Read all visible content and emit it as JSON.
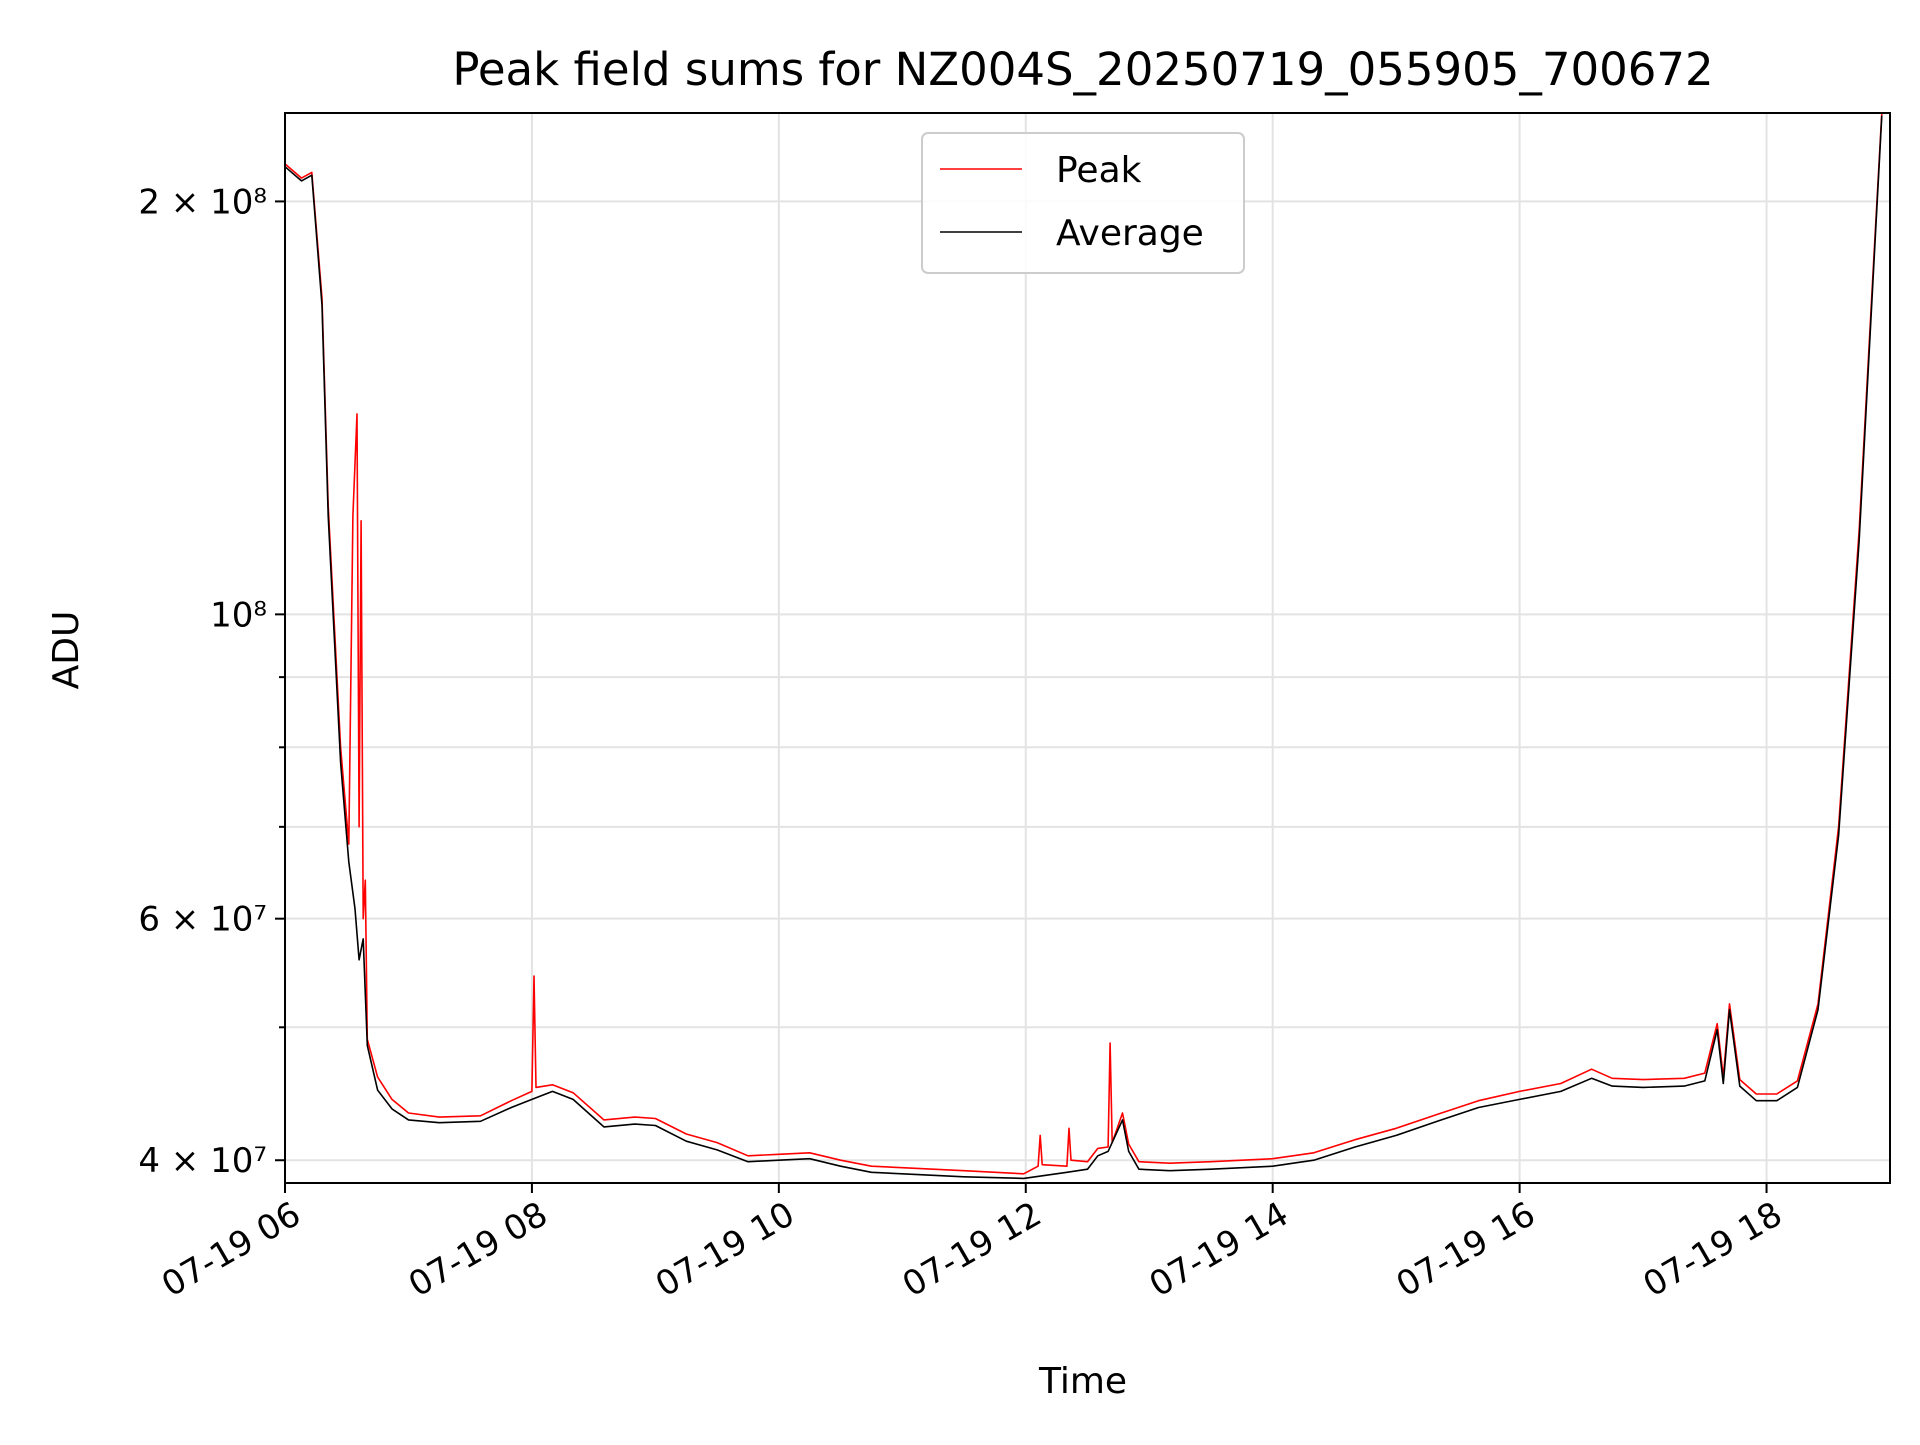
{
  "chart_data": {
    "type": "line",
    "title": "Peak field sums for NZ004S_20250719_055905_700672",
    "xlabel": "Time",
    "ylabel": "ADU",
    "y_scale": "log",
    "grid": true,
    "legend_position": "top-center",
    "xlim": [
      "2025-07-19T06:00",
      "2025-07-19T19:00"
    ],
    "ylim": [
      38500000,
      232000000
    ],
    "x_ticks": [
      {
        "value": "2025-07-19T06:00",
        "label": "07-19 06"
      },
      {
        "value": "2025-07-19T08:00",
        "label": "07-19 08"
      },
      {
        "value": "2025-07-19T10:00",
        "label": "07-19 10"
      },
      {
        "value": "2025-07-19T12:00",
        "label": "07-19 12"
      },
      {
        "value": "2025-07-19T14:00",
        "label": "07-19 14"
      },
      {
        "value": "2025-07-19T16:00",
        "label": "07-19 16"
      },
      {
        "value": "2025-07-19T18:00",
        "label": "07-19 18"
      }
    ],
    "y_ticks_major": [
      {
        "value": 40000000,
        "label": "4 × 10⁷"
      },
      {
        "value": 60000000,
        "label": "6 × 10⁷"
      },
      {
        "value": 100000000,
        "label": "10⁸"
      },
      {
        "value": 200000000,
        "label": "2 × 10⁸"
      }
    ],
    "y_ticks_minor": [
      50000000,
      70000000,
      80000000,
      90000000
    ],
    "series": [
      {
        "name": "Peak",
        "color": "#ff0000",
        "points": [
          [
            "2025-07-19T06:00",
            213000000
          ],
          [
            "2025-07-19T06:08",
            208000000
          ],
          [
            "2025-07-19T06:13",
            210000000
          ],
          [
            "2025-07-19T06:18",
            170000000
          ],
          [
            "2025-07-19T06:21",
            120000000
          ],
          [
            "2025-07-19T06:27",
            80000000
          ],
          [
            "2025-07-19T06:31",
            68000000
          ],
          [
            "2025-07-19T06:33",
            118000000
          ],
          [
            "2025-07-19T06:35",
            140000000
          ],
          [
            "2025-07-19T06:36",
            70000000
          ],
          [
            "2025-07-19T06:37",
            117000000
          ],
          [
            "2025-07-19T06:38",
            60000000
          ],
          [
            "2025-07-19T06:39",
            64000000
          ],
          [
            "2025-07-19T06:40",
            49000000
          ],
          [
            "2025-07-19T06:45",
            46000000
          ],
          [
            "2025-07-19T06:52",
            44300000
          ],
          [
            "2025-07-19T07:00",
            43300000
          ],
          [
            "2025-07-19T07:15",
            43000000
          ],
          [
            "2025-07-19T07:35",
            43100000
          ],
          [
            "2025-07-19T07:50",
            44200000
          ],
          [
            "2025-07-19T08:00",
            44900000
          ],
          [
            "2025-07-19T08:01",
            54500000
          ],
          [
            "2025-07-19T08:02",
            45200000
          ],
          [
            "2025-07-19T08:10",
            45400000
          ],
          [
            "2025-07-19T08:20",
            44800000
          ],
          [
            "2025-07-19T08:35",
            42800000
          ],
          [
            "2025-07-19T08:50",
            43000000
          ],
          [
            "2025-07-19T09:00",
            42900000
          ],
          [
            "2025-07-19T09:15",
            41800000
          ],
          [
            "2025-07-19T09:30",
            41200000
          ],
          [
            "2025-07-19T09:45",
            40300000
          ],
          [
            "2025-07-19T10:00",
            40400000
          ],
          [
            "2025-07-19T10:15",
            40500000
          ],
          [
            "2025-07-19T10:30",
            40000000
          ],
          [
            "2025-07-19T10:45",
            39600000
          ],
          [
            "2025-07-19T11:00",
            39500000
          ],
          [
            "2025-07-19T11:30",
            39300000
          ],
          [
            "2025-07-19T11:59",
            39100000
          ],
          [
            "2025-07-19T12:06",
            39600000
          ],
          [
            "2025-07-19T12:07",
            41700000
          ],
          [
            "2025-07-19T12:08",
            39700000
          ],
          [
            "2025-07-19T12:20",
            39600000
          ],
          [
            "2025-07-19T12:21",
            42200000
          ],
          [
            "2025-07-19T12:22",
            40000000
          ],
          [
            "2025-07-19T12:30",
            39900000
          ],
          [
            "2025-07-19T12:35",
            40800000
          ],
          [
            "2025-07-19T12:40",
            40900000
          ],
          [
            "2025-07-19T12:41",
            48700000
          ],
          [
            "2025-07-19T12:42",
            41200000
          ],
          [
            "2025-07-19T12:47",
            43300000
          ],
          [
            "2025-07-19T12:50",
            41100000
          ],
          [
            "2025-07-19T12:55",
            39900000
          ],
          [
            "2025-07-19T13:10",
            39800000
          ],
          [
            "2025-07-19T13:30",
            39900000
          ],
          [
            "2025-07-19T14:00",
            40100000
          ],
          [
            "2025-07-19T14:20",
            40500000
          ],
          [
            "2025-07-19T14:40",
            41400000
          ],
          [
            "2025-07-19T15:00",
            42200000
          ],
          [
            "2025-07-19T15:20",
            43200000
          ],
          [
            "2025-07-19T15:40",
            44200000
          ],
          [
            "2025-07-19T16:00",
            44900000
          ],
          [
            "2025-07-19T16:20",
            45500000
          ],
          [
            "2025-07-19T16:35",
            46600000
          ],
          [
            "2025-07-19T16:45",
            45900000
          ],
          [
            "2025-07-19T17:00",
            45800000
          ],
          [
            "2025-07-19T17:20",
            45900000
          ],
          [
            "2025-07-19T17:30",
            46300000
          ],
          [
            "2025-07-19T17:36",
            50300000
          ],
          [
            "2025-07-19T17:39",
            46000000
          ],
          [
            "2025-07-19T17:42",
            52000000
          ],
          [
            "2025-07-19T17:47",
            45800000
          ],
          [
            "2025-07-19T17:55",
            44700000
          ],
          [
            "2025-07-19T18:05",
            44700000
          ],
          [
            "2025-07-19T18:15",
            45700000
          ],
          [
            "2025-07-19T18:25",
            52000000
          ],
          [
            "2025-07-19T18:35",
            70000000
          ],
          [
            "2025-07-19T18:45",
            115000000
          ],
          [
            "2025-07-19T18:52",
            180000000
          ],
          [
            "2025-07-19T18:56",
            232000000
          ]
        ]
      },
      {
        "name": "Average",
        "color": "#000000",
        "points": [
          [
            "2025-07-19T06:00",
            212000000
          ],
          [
            "2025-07-19T06:08",
            207000000
          ],
          [
            "2025-07-19T06:13",
            209000000
          ],
          [
            "2025-07-19T06:18",
            168000000
          ],
          [
            "2025-07-19T06:21",
            118000000
          ],
          [
            "2025-07-19T06:27",
            78000000
          ],
          [
            "2025-07-19T06:31",
            66000000
          ],
          [
            "2025-07-19T06:34",
            61000000
          ],
          [
            "2025-07-19T06:36",
            56000000
          ],
          [
            "2025-07-19T06:38",
            58000000
          ],
          [
            "2025-07-19T06:40",
            48500000
          ],
          [
            "2025-07-19T06:45",
            45000000
          ],
          [
            "2025-07-19T06:52",
            43600000
          ],
          [
            "2025-07-19T07:00",
            42800000
          ],
          [
            "2025-07-19T07:15",
            42600000
          ],
          [
            "2025-07-19T07:35",
            42700000
          ],
          [
            "2025-07-19T07:50",
            43700000
          ],
          [
            "2025-07-19T08:00",
            44300000
          ],
          [
            "2025-07-19T08:10",
            44900000
          ],
          [
            "2025-07-19T08:20",
            44300000
          ],
          [
            "2025-07-19T08:35",
            42300000
          ],
          [
            "2025-07-19T08:50",
            42500000
          ],
          [
            "2025-07-19T09:00",
            42400000
          ],
          [
            "2025-07-19T09:15",
            41300000
          ],
          [
            "2025-07-19T09:30",
            40700000
          ],
          [
            "2025-07-19T09:45",
            39900000
          ],
          [
            "2025-07-19T10:00",
            40000000
          ],
          [
            "2025-07-19T10:15",
            40100000
          ],
          [
            "2025-07-19T10:30",
            39600000
          ],
          [
            "2025-07-19T10:45",
            39200000
          ],
          [
            "2025-07-19T11:00",
            39100000
          ],
          [
            "2025-07-19T11:30",
            38900000
          ],
          [
            "2025-07-19T11:59",
            38800000
          ],
          [
            "2025-07-19T12:20",
            39200000
          ],
          [
            "2025-07-19T12:30",
            39400000
          ],
          [
            "2025-07-19T12:35",
            40300000
          ],
          [
            "2025-07-19T12:40",
            40600000
          ],
          [
            "2025-07-19T12:47",
            42800000
          ],
          [
            "2025-07-19T12:50",
            40600000
          ],
          [
            "2025-07-19T12:55",
            39400000
          ],
          [
            "2025-07-19T13:10",
            39300000
          ],
          [
            "2025-07-19T13:30",
            39400000
          ],
          [
            "2025-07-19T14:00",
            39600000
          ],
          [
            "2025-07-19T14:20",
            40000000
          ],
          [
            "2025-07-19T14:40",
            40900000
          ],
          [
            "2025-07-19T15:00",
            41700000
          ],
          [
            "2025-07-19T15:20",
            42700000
          ],
          [
            "2025-07-19T15:40",
            43700000
          ],
          [
            "2025-07-19T16:00",
            44300000
          ],
          [
            "2025-07-19T16:20",
            44900000
          ],
          [
            "2025-07-19T16:35",
            45900000
          ],
          [
            "2025-07-19T16:45",
            45300000
          ],
          [
            "2025-07-19T17:00",
            45200000
          ],
          [
            "2025-07-19T17:20",
            45300000
          ],
          [
            "2025-07-19T17:30",
            45700000
          ],
          [
            "2025-07-19T17:36",
            49800000
          ],
          [
            "2025-07-19T17:39",
            45500000
          ],
          [
            "2025-07-19T17:42",
            51500000
          ],
          [
            "2025-07-19T17:47",
            45300000
          ],
          [
            "2025-07-19T17:55",
            44200000
          ],
          [
            "2025-07-19T18:05",
            44200000
          ],
          [
            "2025-07-19T18:15",
            45200000
          ],
          [
            "2025-07-19T18:25",
            51500000
          ],
          [
            "2025-07-19T18:35",
            69000000
          ],
          [
            "2025-07-19T18:45",
            113000000
          ],
          [
            "2025-07-19T18:52",
            178000000
          ],
          [
            "2025-07-19T18:56",
            231000000
          ]
        ]
      }
    ]
  }
}
